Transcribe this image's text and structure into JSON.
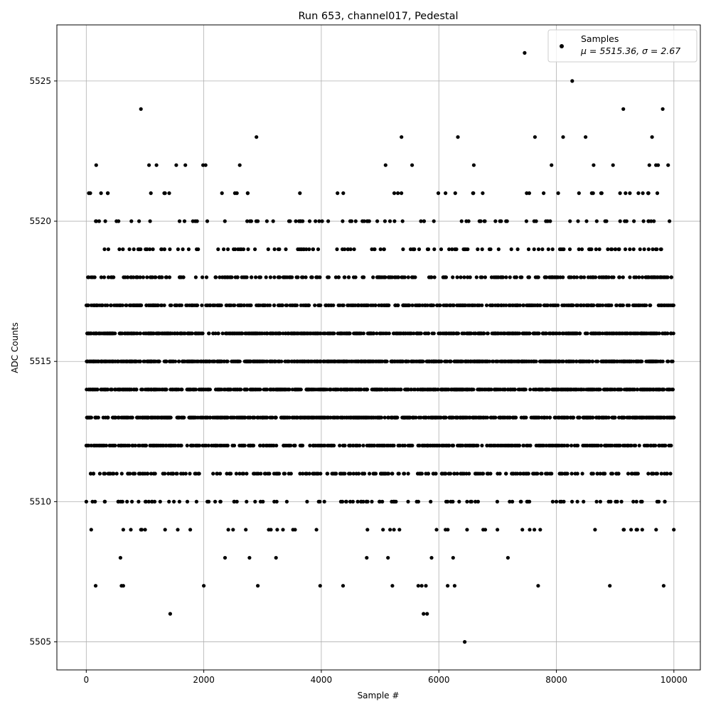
{
  "chart_data": {
    "type": "scatter",
    "title": "Run 653, channel017, Pedestal",
    "xlabel": "Sample #",
    "ylabel": "ADC Counts",
    "xlim": [
      -500,
      10450
    ],
    "ylim": [
      5504,
      5527
    ],
    "xticks": [
      0,
      2000,
      4000,
      6000,
      8000,
      10000
    ],
    "yticks": [
      5505,
      5510,
      5515,
      5520,
      5525
    ],
    "xtick_labels": [
      "0",
      "2000",
      "4000",
      "6000",
      "8000",
      "10000"
    ],
    "ytick_labels": [
      "5505",
      "5510",
      "5515",
      "5520",
      "5525"
    ],
    "grid": true,
    "legend": {
      "position": "top-right",
      "entry_name": "Samples",
      "entry_stats": "μ = 5515.36, σ = 2.67"
    },
    "marker_color": "#000000",
    "n_samples": 10000,
    "mean": 5515.36,
    "sigma": 2.67,
    "series": [
      {
        "name": "Samples",
        "level_density": [
          {
            "y": 5505,
            "fraction": 0.0001
          },
          {
            "y": 5506,
            "fraction": 0.0002
          },
          {
            "y": 5507,
            "fraction": 0.001
          },
          {
            "y": 5508,
            "fraction": 0.002
          },
          {
            "y": 5509,
            "fraction": 0.01
          },
          {
            "y": 5510,
            "fraction": 0.025
          },
          {
            "y": 5511,
            "fraction": 0.06
          },
          {
            "y": 5512,
            "fraction": 0.11
          },
          {
            "y": 5513,
            "fraction": 0.15
          },
          {
            "y": 5514,
            "fraction": 0.18
          },
          {
            "y": 5515,
            "fraction": 0.17
          },
          {
            "y": 5516,
            "fraction": 0.15
          },
          {
            "y": 5517,
            "fraction": 0.1
          },
          {
            "y": 5518,
            "fraction": 0.06
          },
          {
            "y": 5519,
            "fraction": 0.03
          },
          {
            "y": 5520,
            "fraction": 0.02
          },
          {
            "y": 5521,
            "fraction": 0.01
          },
          {
            "y": 5522,
            "fraction": 0.004
          },
          {
            "y": 5523,
            "fraction": 0.0015
          }
        ],
        "outliers": [
          {
            "x": 930,
            "y": 5524
          },
          {
            "x": 9140,
            "y": 5524
          },
          {
            "x": 9810,
            "y": 5524
          },
          {
            "x": 8270,
            "y": 5525
          },
          {
            "x": 7460,
            "y": 5526
          },
          {
            "x": 6440,
            "y": 5505
          },
          {
            "x": 5740,
            "y": 5506
          },
          {
            "x": 5800,
            "y": 5506
          },
          {
            "x": 160,
            "y": 5507
          },
          {
            "x": 600,
            "y": 5507
          },
          {
            "x": 630,
            "y": 5507
          },
          {
            "x": 2000,
            "y": 5507
          },
          {
            "x": 3980,
            "y": 5507
          },
          {
            "x": 4370,
            "y": 5507
          },
          {
            "x": 5210,
            "y": 5507
          },
          {
            "x": 5650,
            "y": 5507
          },
          {
            "x": 5780,
            "y": 5507
          },
          {
            "x": 6150,
            "y": 5507
          },
          {
            "x": 7690,
            "y": 5507
          },
          {
            "x": 8910,
            "y": 5507
          }
        ]
      }
    ]
  }
}
